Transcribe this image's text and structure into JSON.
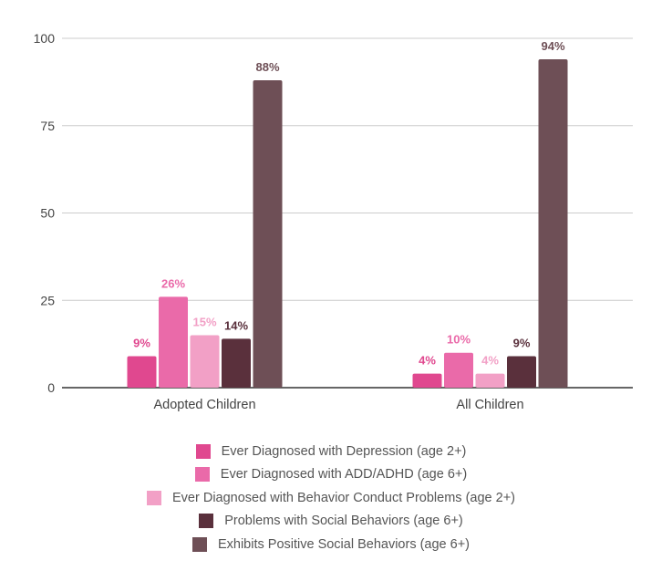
{
  "chart_data": {
    "type": "bar",
    "categories": [
      "Adopted Children",
      "All Children"
    ],
    "ylim": [
      0,
      100
    ],
    "yticks": [
      0,
      25,
      50,
      75,
      100
    ],
    "grid": true,
    "legend_position": "bottom",
    "series": [
      {
        "name": "Ever Diagnosed with Depression (age 2+)",
        "values": [
          9,
          4
        ],
        "labels": [
          "9%",
          "4%"
        ],
        "color": "#e0488f"
      },
      {
        "name": "Ever Diagnosed with ADD/ADHD (age 6+)",
        "values": [
          26,
          10
        ],
        "labels": [
          "26%",
          "10%"
        ],
        "color": "#ea6aa9"
      },
      {
        "name": "Ever Diagnosed with Behavior Conduct Problems (age 2+)",
        "values": [
          15,
          4
        ],
        "labels": [
          "15%",
          "4%"
        ],
        "color": "#f2a0c6"
      },
      {
        "name": "Problems with Social Behaviors (age 6+)",
        "values": [
          14,
          9
        ],
        "labels": [
          "14%",
          "9%"
        ],
        "color": "#5a303c"
      },
      {
        "name": "Exhibits Positive Social Behaviors (age 6+)",
        "values": [
          88,
          94
        ],
        "labels": [
          "88%",
          "94%"
        ],
        "color": "#6e4f56"
      }
    ]
  }
}
